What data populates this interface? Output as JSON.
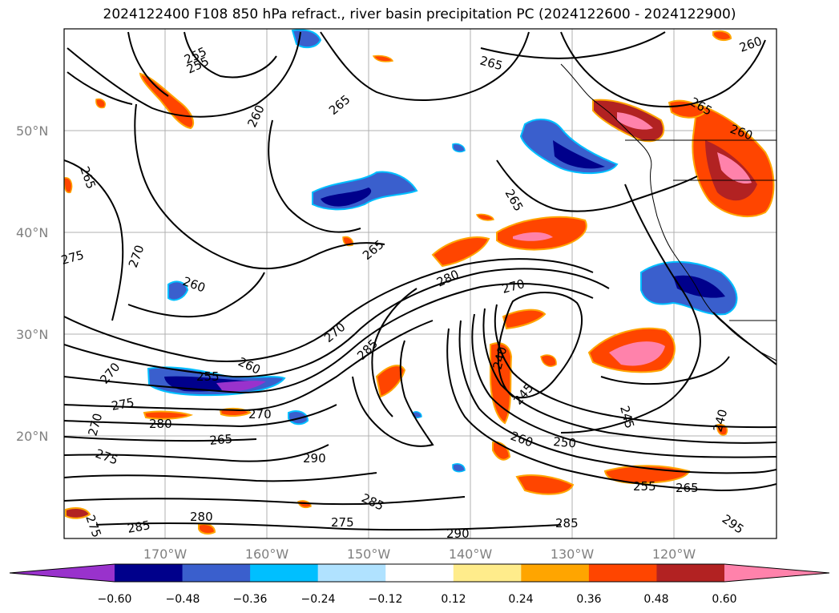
{
  "title": "2024122400 F108 850 hPa refract., river basin precipitation PC (2024122600 - 2024122900)",
  "map": {
    "lat_labels": [
      "50°N",
      "40°N",
      "30°N",
      "20°N"
    ],
    "lon_labels": [
      "170°W",
      "160°W",
      "150°W",
      "140°W",
      "130°W",
      "120°W"
    ],
    "contour_labels": [
      "255",
      "265",
      "260",
      "265",
      "265",
      "265",
      "260",
      "265",
      "270",
      "275",
      "260",
      "270",
      "265",
      "280",
      "270",
      "285",
      "255",
      "260",
      "270",
      "270",
      "275",
      "275",
      "280",
      "270",
      "265",
      "290",
      "275",
      "245",
      "240",
      "260",
      "250",
      "255",
      "265",
      "245",
      "240",
      "280",
      "275",
      "285",
      "290",
      "285",
      "295",
      "285",
      "255",
      "260"
    ]
  },
  "colorbar": {
    "colors": [
      "#9932cc",
      "#00008b",
      "#3a5fcd",
      "#00bfff",
      "#b0e2ff",
      "#ffffff",
      "#ffec8b",
      "#ffa500",
      "#ff4500",
      "#b22222",
      "#ff82ab"
    ],
    "tick_labels": [
      "−0.60",
      "−0.48",
      "−0.36",
      "−0.24",
      "−0.12",
      "0.12",
      "0.24",
      "0.36",
      "0.48",
      "0.60"
    ]
  }
}
